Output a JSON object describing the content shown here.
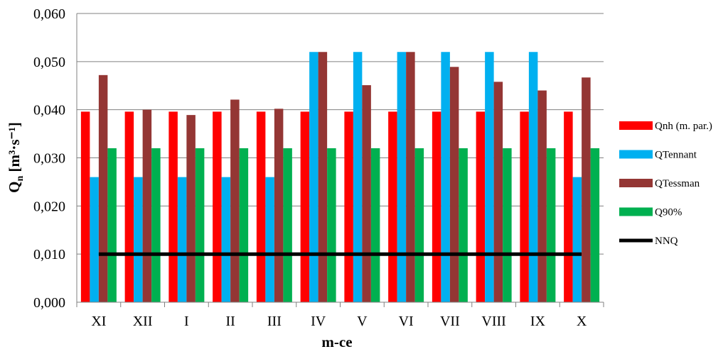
{
  "chart_data": {
    "type": "bar",
    "categories": [
      "XI",
      "XII",
      "I",
      "II",
      "III",
      "IV",
      "V",
      "VI",
      "VII",
      "VIII",
      "IX",
      "X"
    ],
    "series": [
      {
        "name": "Qnh (m. par.)",
        "type": "bar",
        "color": "#ff0000",
        "values": [
          0.0396,
          0.0396,
          0.0396,
          0.0396,
          0.0396,
          0.0396,
          0.0396,
          0.0396,
          0.0396,
          0.0396,
          0.0396,
          0.0396
        ]
      },
      {
        "name": "QTennant",
        "type": "bar",
        "color": "#00b0f0",
        "values": [
          0.026,
          0.026,
          0.026,
          0.026,
          0.026,
          0.052,
          0.052,
          0.052,
          0.052,
          0.052,
          0.052,
          0.026
        ]
      },
      {
        "name": "QTessman",
        "type": "bar",
        "color": "#943634",
        "values": [
          0.0472,
          0.04,
          0.0389,
          0.0421,
          0.0402,
          0.052,
          0.0451,
          0.052,
          0.0489,
          0.0458,
          0.044,
          0.0467
        ]
      },
      {
        "name": "Q90%",
        "type": "bar",
        "color": "#00b050",
        "values": [
          0.032,
          0.032,
          0.032,
          0.032,
          0.032,
          0.032,
          0.032,
          0.032,
          0.032,
          0.032,
          0.032,
          0.032
        ]
      },
      {
        "name": "NNQ",
        "type": "line",
        "color": "#000000",
        "values": [
          0.01,
          0.01,
          0.01,
          0.01,
          0.01,
          0.01,
          0.01,
          0.01,
          0.01,
          0.01,
          0.01,
          0.01
        ]
      }
    ],
    "xlabel": "m-ce",
    "ylabel_main": "Q",
    "ylabel_sub": "n",
    "ylabel_unit": " [m³·s⁻¹]",
    "ylim": [
      0,
      0.06
    ],
    "yticks": [
      "0,000",
      "0,010",
      "0,020",
      "0,030",
      "0,040",
      "0,050",
      "0,060"
    ],
    "grid": true,
    "legend_position": "right"
  }
}
